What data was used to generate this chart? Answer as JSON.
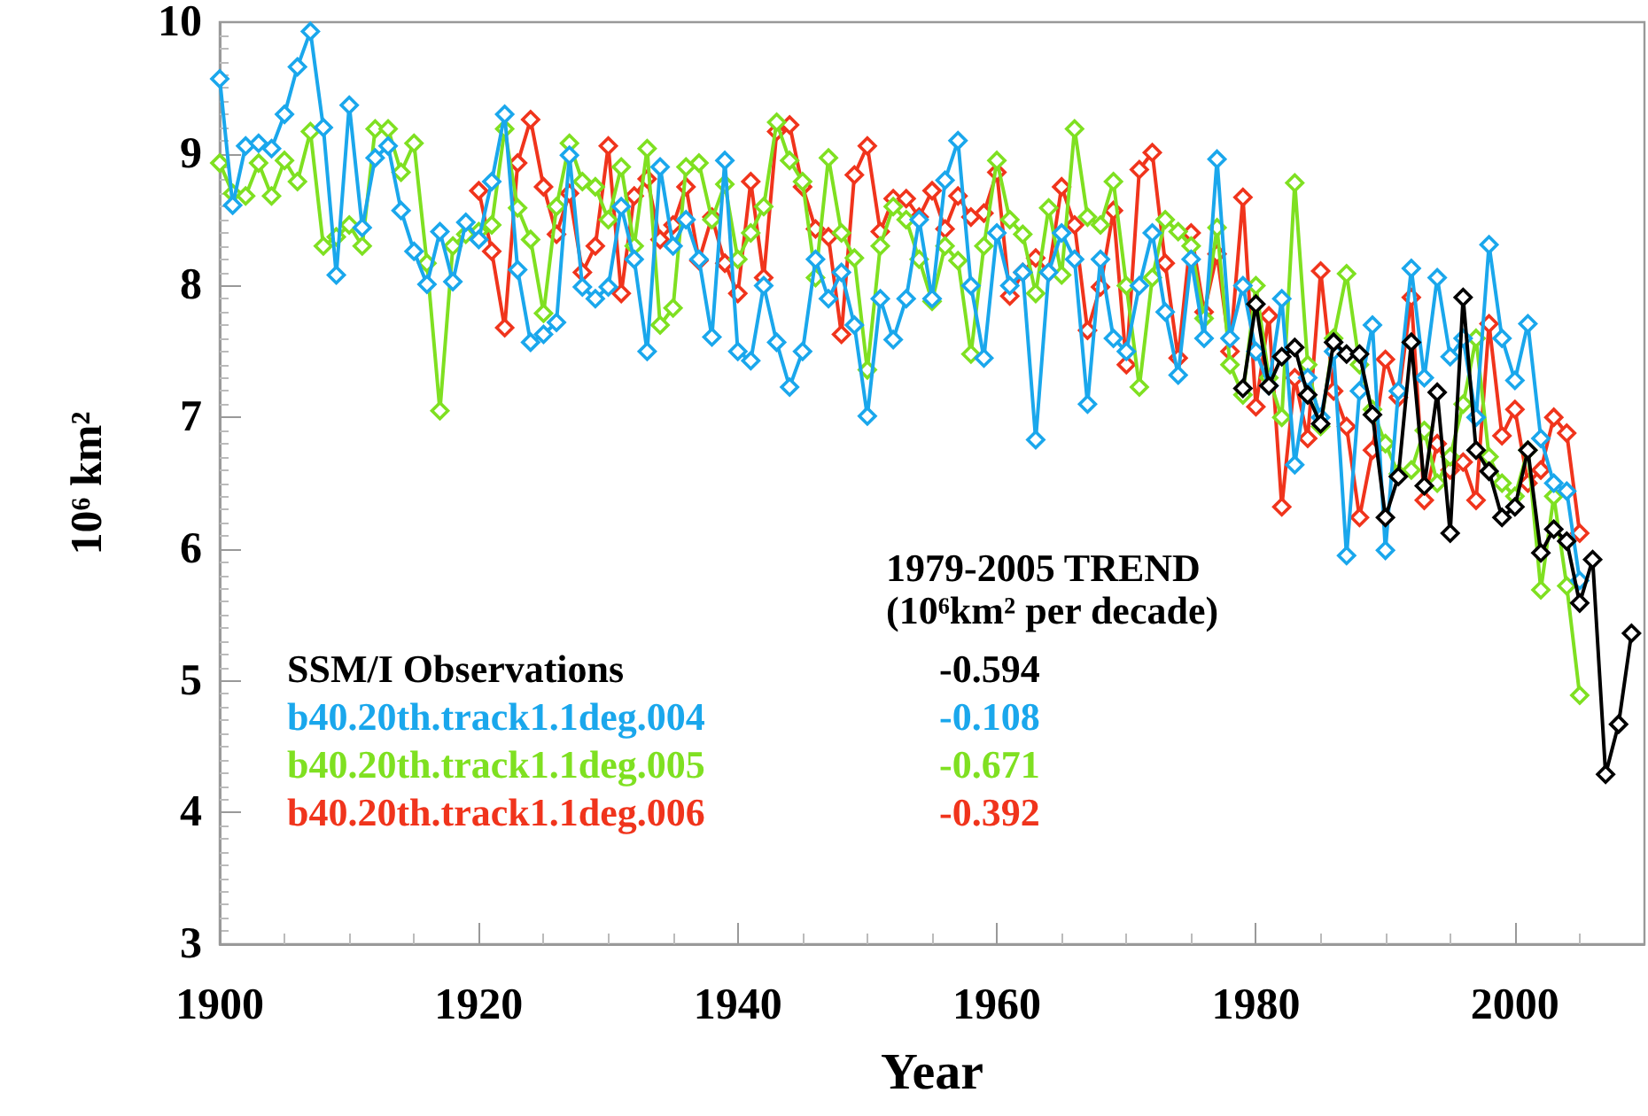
{
  "chart_data": {
    "type": "line",
    "xlabel": "Year",
    "ylabel": "10⁶ km²",
    "xlim": [
      1900,
      2010
    ],
    "xticks": [
      1900,
      1920,
      1940,
      1960,
      1980,
      2000
    ],
    "ylim": [
      3,
      10
    ],
    "yticks": [
      3,
      4,
      5,
      6,
      7,
      8,
      9,
      10
    ],
    "grid": false,
    "legend": "bottom left",
    "marker": "diamond",
    "line_style": "solid",
    "x": [
      1900,
      1901,
      1902,
      1903,
      1904,
      1905,
      1906,
      1907,
      1908,
      1909,
      1910,
      1911,
      1912,
      1913,
      1914,
      1915,
      1916,
      1917,
      1918,
      1919,
      1920,
      1921,
      1922,
      1923,
      1924,
      1925,
      1926,
      1927,
      1928,
      1929,
      1930,
      1931,
      1932,
      1933,
      1934,
      1935,
      1936,
      1937,
      1938,
      1939,
      1940,
      1941,
      1942,
      1943,
      1944,
      1945,
      1946,
      1947,
      1948,
      1949,
      1950,
      1951,
      1952,
      1953,
      1954,
      1955,
      1956,
      1957,
      1958,
      1959,
      1960,
      1961,
      1962,
      1963,
      1964,
      1965,
      1966,
      1967,
      1968,
      1969,
      1970,
      1971,
      1972,
      1973,
      1974,
      1975,
      1976,
      1977,
      1978,
      1979,
      1980,
      1981,
      1982,
      1983,
      1984,
      1985,
      1986,
      1987,
      1988,
      1989,
      1990,
      1991,
      1992,
      1993,
      1994,
      1995,
      1996,
      1997,
      1998,
      1999,
      2000,
      2001,
      2002,
      2003,
      2004,
      2005,
      2006,
      2007,
      2008,
      2009
    ],
    "annotations": [
      "1979-2005 TREND\n(10⁶km² per decade)",
      "-0.594",
      "-0.108",
      "-0.671",
      "-0.392"
    ],
    "series": [
      {
        "name": "SSM/I Observations",
        "color": "#000000",
        "values": [
          null,
          null,
          null,
          null,
          null,
          null,
          null,
          null,
          null,
          null,
          null,
          null,
          null,
          null,
          null,
          null,
          null,
          null,
          null,
          null,
          null,
          null,
          null,
          null,
          null,
          null,
          null,
          null,
          null,
          null,
          null,
          null,
          null,
          null,
          null,
          null,
          null,
          null,
          null,
          null,
          null,
          null,
          null,
          null,
          null,
          null,
          null,
          null,
          null,
          null,
          null,
          null,
          null,
          null,
          null,
          null,
          null,
          null,
          null,
          null,
          null,
          null,
          null,
          null,
          null,
          null,
          null,
          null,
          null,
          null,
          null,
          null,
          null,
          null,
          null,
          null,
          null,
          null,
          null,
          7.22,
          7.86,
          7.24,
          7.46,
          7.53,
          7.17,
          6.95,
          7.57,
          7.48,
          7.48,
          7.02,
          6.24,
          6.55,
          7.57,
          6.48,
          7.19,
          6.12,
          7.91,
          6.75,
          6.59,
          6.24,
          6.32,
          6.75,
          5.97,
          6.15,
          6.06,
          5.59,
          5.92,
          4.29,
          4.67,
          5.36
        ]
      },
      {
        "name": "b40.20th.track1.1deg.004",
        "color": "#1aa7ec",
        "values": [
          9.57,
          8.61,
          9.06,
          9.08,
          9.04,
          9.3,
          9.66,
          9.93,
          9.2,
          8.08,
          9.37,
          8.44,
          8.97,
          9.06,
          8.57,
          8.26,
          8.01,
          8.41,
          8.03,
          8.48,
          8.35,
          8.79,
          9.3,
          8.12,
          7.57,
          7.63,
          7.72,
          8.99,
          7.99,
          7.9,
          7.99,
          8.6,
          8.2,
          7.5,
          8.9,
          8.3,
          8.5,
          8.2,
          7.61,
          8.95,
          7.5,
          7.43,
          8.0,
          7.57,
          7.23,
          7.5,
          8.2,
          7.9,
          8.1,
          7.7,
          7.01,
          7.9,
          7.59,
          7.9,
          8.5,
          7.9,
          8.8,
          9.1,
          8.0,
          7.45,
          8.4,
          8.0,
          8.1,
          6.83,
          8.1,
          8.4,
          8.2,
          7.1,
          8.2,
          7.6,
          7.5,
          8.0,
          8.4,
          7.8,
          7.32,
          8.2,
          7.6,
          8.96,
          7.6,
          8.0,
          7.5,
          7.24,
          7.9,
          6.64,
          7.3,
          7.0,
          7.5,
          5.95,
          7.2,
          7.7,
          5.99,
          7.2,
          8.13,
          7.3,
          8.06,
          7.46,
          7.6,
          7.0,
          8.31,
          7.6,
          7.28,
          7.71,
          6.84,
          6.5,
          6.44,
          5.76,
          null,
          null,
          null,
          null
        ]
      },
      {
        "name": "b40.20th.track1.1deg.005",
        "color": "#7fe021",
        "values": [
          8.93,
          8.7,
          8.68,
          8.93,
          8.68,
          8.95,
          8.79,
          9.17,
          8.3,
          8.37,
          8.46,
          8.3,
          9.19,
          9.19,
          8.86,
          9.08,
          8.17,
          7.05,
          8.3,
          8.39,
          8.41,
          8.46,
          9.19,
          8.59,
          8.35,
          7.79,
          8.6,
          9.08,
          8.79,
          8.75,
          8.5,
          8.9,
          8.3,
          9.04,
          7.7,
          7.83,
          8.9,
          8.93,
          8.5,
          8.77,
          8.2,
          8.4,
          8.6,
          9.24,
          8.95,
          8.79,
          8.06,
          8.97,
          8.4,
          8.21,
          7.36,
          8.3,
          8.6,
          8.5,
          8.2,
          7.88,
          8.3,
          8.19,
          7.48,
          8.3,
          8.95,
          8.5,
          8.39,
          7.94,
          8.59,
          8.08,
          9.19,
          8.52,
          8.46,
          8.79,
          8.0,
          7.23,
          8.06,
          8.5,
          8.41,
          8.3,
          7.75,
          8.44,
          7.4,
          7.17,
          8.0,
          7.3,
          7.0,
          8.78,
          7.4,
          6.93,
          7.6,
          8.09,
          7.4,
          7.06,
          6.8,
          6.57,
          6.6,
          6.9,
          6.5,
          6.7,
          7.1,
          7.6,
          6.7,
          6.5,
          6.4,
          6.75,
          5.69,
          6.4,
          5.72,
          4.89,
          null,
          null,
          null,
          null
        ]
      },
      {
        "name": "b40.20th.track1.1deg.006",
        "color": "#f0341c",
        "values": [
          null,
          null,
          null,
          null,
          null,
          null,
          null,
          null,
          null,
          null,
          null,
          null,
          null,
          null,
          null,
          null,
          null,
          null,
          null,
          null,
          8.72,
          8.26,
          7.68,
          8.93,
          9.26,
          8.75,
          8.39,
          8.7,
          8.1,
          8.3,
          9.06,
          7.94,
          8.68,
          8.81,
          8.35,
          8.46,
          8.75,
          8.19,
          8.52,
          8.17,
          7.94,
          8.79,
          8.06,
          9.17,
          9.22,
          8.75,
          8.43,
          8.37,
          7.63,
          8.84,
          9.06,
          8.41,
          8.66,
          8.66,
          8.52,
          8.72,
          8.43,
          8.68,
          8.52,
          8.55,
          8.86,
          7.92,
          8.1,
          8.21,
          8.1,
          8.75,
          8.46,
          7.66,
          7.99,
          8.57,
          7.4,
          8.88,
          9.01,
          8.17,
          7.45,
          8.4,
          7.8,
          8.24,
          7.5,
          8.67,
          7.08,
          7.77,
          6.32,
          7.3,
          6.84,
          8.11,
          7.2,
          6.93,
          6.24,
          6.75,
          7.44,
          7.15,
          7.91,
          6.37,
          6.8,
          6.6,
          6.66,
          6.37,
          7.71,
          6.86,
          7.06,
          6.5,
          6.6,
          7.0,
          6.88,
          6.12,
          null,
          null,
          null,
          null
        ]
      }
    ]
  }
}
